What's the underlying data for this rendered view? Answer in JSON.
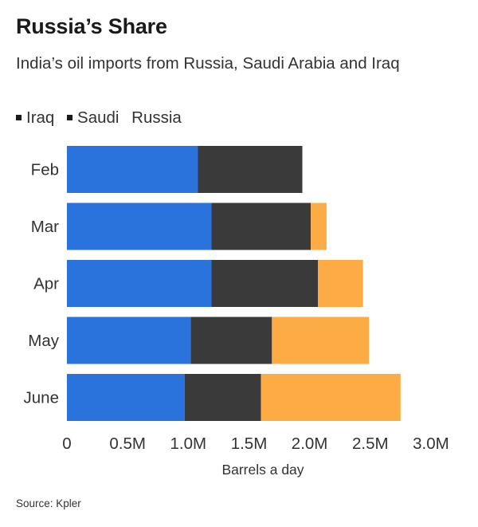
{
  "chart_data": {
    "type": "bar",
    "orientation": "horizontal",
    "stacked": true,
    "title": "Russia’s Share",
    "subtitle": "India’s oil imports from Russia, Saudi Arabia and Iraq",
    "categories": [
      "Feb",
      "Mar",
      "Apr",
      "May",
      "June"
    ],
    "series": [
      {
        "name": "Iraq",
        "color": "#2a72dc",
        "values": [
          1.08,
          1.19,
          1.19,
          1.02,
          0.97
        ]
      },
      {
        "name": "Saudi",
        "color": "#3a3a3a",
        "values": [
          0.86,
          0.82,
          0.88,
          0.67,
          0.63
        ]
      },
      {
        "name": "Russia",
        "color": "#fdab45",
        "values": [
          0.0,
          0.13,
          0.37,
          0.8,
          1.15
        ]
      }
    ],
    "xlabel": "Barrels a day",
    "ylabel": "",
    "xlim": [
      0,
      3.0
    ],
    "xticks": [
      0,
      0.5,
      1.0,
      1.5,
      2.0,
      2.5,
      3.0
    ],
    "xtick_labels": [
      "0",
      "0.5M",
      "1.0M",
      "1.5M",
      "2.0M",
      "2.5M",
      "3.0M"
    ],
    "grid": false,
    "legend_position": "top-left",
    "source": "Source: Kpler"
  }
}
